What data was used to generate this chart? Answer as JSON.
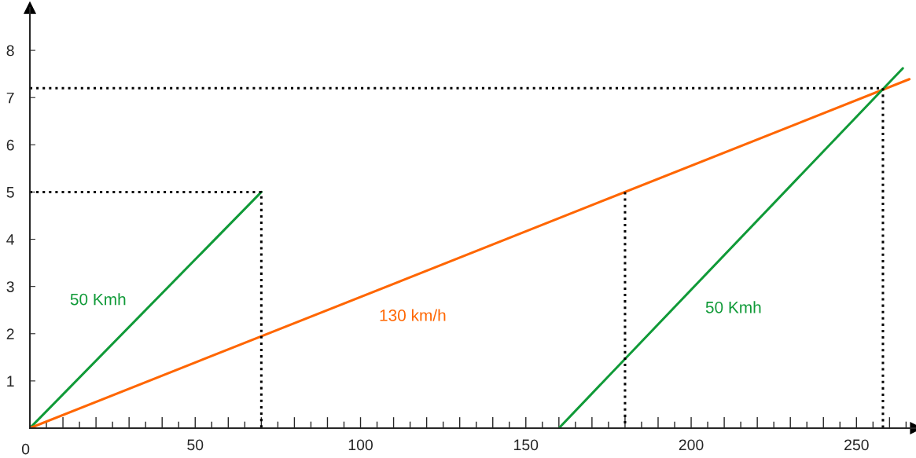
{
  "chart_data": {
    "type": "line",
    "series": [
      {
        "name": "50 Kmh",
        "color": "#109a38",
        "x": [
          0,
          70
        ],
        "values": [
          0,
          5
        ]
      },
      {
        "name": "130 km/h",
        "color": "#ff6600",
        "x": [
          0,
          266
        ],
        "values": [
          0,
          7.39
        ]
      },
      {
        "name": "50 Kmh",
        "color": "#109a38",
        "x": [
          160,
          264
        ],
        "values": [
          0,
          7.62
        ]
      },
      {
        "color": "#000000",
        "line_style": "dotted",
        "x": [
          0,
          70,
          70
        ],
        "values": [
          5,
          5,
          0
        ]
      },
      {
        "color": "#000000",
        "line_style": "dotted",
        "x": [
          180,
          180
        ],
        "values": [
          5,
          0
        ]
      },
      {
        "color": "#000000",
        "line_style": "dotted",
        "x": [
          0,
          258,
          258
        ],
        "values": [
          7.2,
          7.2,
          0
        ]
      }
    ],
    "xlim": [
      0,
      268
    ],
    "ylim": [
      0,
      8.9
    ],
    "xticks": [
      {
        "value": 0,
        "label": "0"
      },
      {
        "value": 5,
        "label": null
      },
      {
        "value": 10,
        "label": null
      },
      {
        "value": 15,
        "label": null
      },
      {
        "value": 20,
        "label": null
      },
      {
        "value": 25,
        "label": null
      },
      {
        "value": 30,
        "label": null
      },
      {
        "value": 35,
        "label": null
      },
      {
        "value": 40,
        "label": null
      },
      {
        "value": 45,
        "label": null
      },
      50,
      {
        "value": 55,
        "label": null
      },
      {
        "value": 60,
        "label": null
      },
      {
        "value": 65,
        "label": null
      },
      {
        "value": 70,
        "label": null
      },
      {
        "value": 75,
        "label": null
      },
      {
        "value": 80,
        "label": null
      },
      {
        "value": 85,
        "label": null
      },
      {
        "value": 90,
        "label": null
      },
      {
        "value": 95,
        "label": null
      },
      100,
      {
        "value": 105,
        "label": null
      },
      {
        "value": 110,
        "label": null
      },
      {
        "value": 115,
        "label": null
      },
      {
        "value": 120,
        "label": null
      },
      {
        "value": 125,
        "label": null
      },
      {
        "value": 130,
        "label": null
      },
      {
        "value": 135,
        "label": null
      },
      {
        "value": 140,
        "label": null
      },
      {
        "value": 145,
        "label": null
      },
      150,
      {
        "value": 155,
        "label": null
      },
      {
        "value": 160,
        "label": null
      },
      {
        "value": 165,
        "label": null
      },
      {
        "value": 170,
        "label": null
      },
      {
        "value": 175,
        "label": null
      },
      {
        "value": 180,
        "label": null
      },
      {
        "value": 185,
        "label": null
      },
      {
        "value": 190,
        "label": null
      },
      {
        "value": 195,
        "label": null
      },
      200,
      {
        "value": 205,
        "label": null
      },
      {
        "value": 210,
        "label": null
      },
      {
        "value": 215,
        "label": null
      },
      {
        "value": 220,
        "label": null
      },
      {
        "value": 225,
        "label": null
      },
      {
        "value": 230,
        "label": null
      },
      {
        "value": 235,
        "label": null
      },
      {
        "value": 240,
        "label": null
      },
      {
        "value": 245,
        "label": null
      },
      250,
      {
        "value": 255,
        "label": null
      },
      {
        "value": 260,
        "label": null
      },
      {
        "value": 265,
        "label": null
      }
    ],
    "yticks": [
      1,
      2,
      3,
      4,
      5,
      6,
      7,
      8
    ],
    "grid": false,
    "legend": false
  }
}
